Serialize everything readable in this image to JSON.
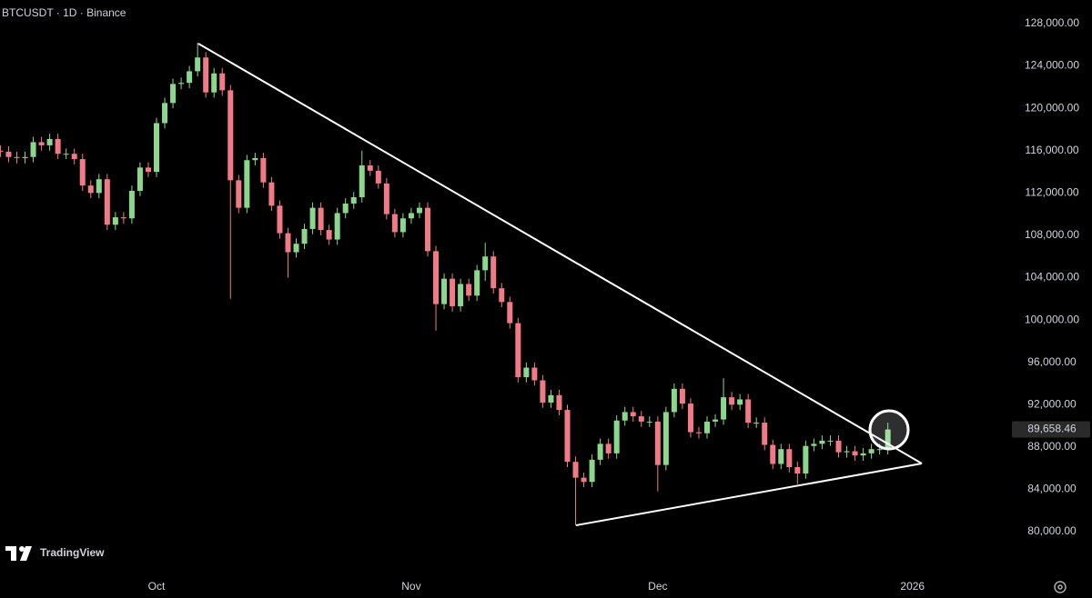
{
  "chart_data": {
    "type": "candlestick",
    "title": "BTCUSDT · 1D · Binance",
    "watermark": "TradingView",
    "categories": [
      null,
      null,
      null,
      null,
      null,
      null,
      null,
      null,
      null,
      null,
      null,
      null,
      null,
      null,
      null,
      null,
      null,
      null,
      null,
      "Oct",
      null,
      null,
      null,
      null,
      null,
      null,
      null,
      null,
      null,
      null,
      null,
      null,
      null,
      null,
      null,
      null,
      null,
      null,
      null,
      null,
      null,
      null,
      null,
      null,
      null,
      null,
      null,
      null,
      null,
      null,
      "Nov",
      null,
      null,
      null,
      null,
      null,
      null,
      null,
      null,
      null,
      null,
      null,
      null,
      null,
      null,
      null,
      null,
      null,
      null,
      null,
      null,
      null,
      null,
      null,
      null,
      null,
      null,
      null,
      null,
      null,
      "Dec",
      null,
      null,
      null,
      null,
      null,
      null,
      null,
      null,
      null,
      null,
      null,
      null,
      null,
      null,
      null,
      null,
      null,
      null,
      null,
      null,
      null,
      null,
      null,
      null,
      null,
      null,
      null,
      null,
      null,
      null,
      "2026",
      null,
      null,
      null,
      null,
      null,
      null,
      null,
      null,
      null,
      null
    ],
    "open": [
      116000,
      115900,
      115400,
      115300,
      115400,
      116800,
      116500,
      117100,
      115700,
      115700,
      115200,
      112700,
      112000,
      113300,
      109000,
      109700,
      109600,
      112200,
      114400,
      114000,
      118600,
      120500,
      122300,
      122400,
      123500,
      124800,
      121500,
      123300,
      121700,
      113200,
      110600,
      115100,
      115300,
      113000,
      110800,
      108200,
      106400,
      107200,
      108600,
      110600,
      108500,
      107600,
      110100,
      111000,
      111600,
      114600,
      114100,
      112900,
      110000,
      108300,
      109600,
      110100,
      110600,
      106500,
      101500,
      103900,
      101300,
      103400,
      102300,
      104700,
      106000,
      103000,
      101700,
      99700,
      94600,
      95500,
      94300,
      92200,
      92900,
      91500,
      86600,
      85100,
      84700,
      86800,
      88300,
      87400,
      90500,
      91300,
      90900,
      90400,
      90400,
      86300,
      91300,
      93500,
      92100,
      89400,
      89300,
      90400,
      90600,
      92700,
      92000,
      92500,
      90300,
      90300,
      88200,
      86400,
      87800,
      86100,
      85500,
      88100,
      88300,
      88600,
      88600,
      87500,
      87600,
      87200,
      87400,
      87800,
      87800,
      null,
      null,
      null,
      null,
      null,
      null,
      null,
      null,
      null,
      null,
      null,
      null,
      null
    ],
    "high": [
      116500,
      116400,
      115900,
      115900,
      117300,
      117300,
      117600,
      117600,
      116200,
      116200,
      115700,
      113200,
      113800,
      113800,
      110200,
      110200,
      112700,
      114900,
      114900,
      119100,
      121000,
      122800,
      122900,
      124000,
      126200,
      125300,
      123800,
      123800,
      122200,
      113700,
      115600,
      115800,
      115800,
      113500,
      111300,
      108700,
      107700,
      109100,
      111100,
      111100,
      109000,
      110600,
      111500,
      112100,
      116000,
      115100,
      114600,
      113400,
      110500,
      110100,
      110600,
      111100,
      111100,
      107000,
      104400,
      104400,
      103900,
      103900,
      105200,
      107300,
      106500,
      103500,
      102200,
      100200,
      96000,
      96000,
      94800,
      93400,
      93400,
      92000,
      87100,
      85600,
      87300,
      88800,
      88800,
      91000,
      91800,
      91800,
      91400,
      90900,
      90900,
      91800,
      94000,
      94000,
      92600,
      89900,
      90900,
      91100,
      94500,
      93200,
      93000,
      93000,
      90800,
      90800,
      88700,
      88300,
      88300,
      86600,
      88600,
      88800,
      89100,
      89100,
      89100,
      88100,
      88100,
      87900,
      88300,
      88300,
      90300,
      null,
      null,
      null,
      null,
      null,
      null,
      null,
      null,
      null,
      null,
      null,
      null,
      null
    ],
    "low": [
      115400,
      114900,
      114800,
      114800,
      114900,
      116000,
      116000,
      115200,
      115200,
      114700,
      112200,
      111500,
      111500,
      108500,
      108500,
      109100,
      109100,
      111700,
      113500,
      113500,
      118100,
      120000,
      121800,
      121900,
      123000,
      121000,
      121000,
      121200,
      102000,
      110100,
      110100,
      114600,
      112500,
      110300,
      107700,
      104000,
      105900,
      106700,
      108100,
      108000,
      107100,
      107100,
      109600,
      110500,
      111100,
      113600,
      112400,
      109500,
      107800,
      107800,
      109100,
      109600,
      106000,
      99000,
      101000,
      100800,
      100800,
      101800,
      101800,
      103700,
      102500,
      101200,
      99200,
      94100,
      94100,
      93800,
      91700,
      91700,
      91000,
      86100,
      80600,
      84200,
      84200,
      86300,
      86900,
      86900,
      90000,
      90400,
      89900,
      89900,
      83800,
      85800,
      90800,
      91600,
      88900,
      88800,
      88800,
      89900,
      90100,
      91500,
      91500,
      89800,
      89800,
      87700,
      85900,
      85900,
      85600,
      84500,
      85000,
      87600,
      87800,
      88100,
      87000,
      87000,
      86700,
      86700,
      86900,
      87300,
      87300,
      null,
      null,
      null,
      null,
      null,
      null,
      null,
      null,
      null,
      null,
      null,
      null,
      null
    ],
    "close": [
      115900,
      115400,
      115300,
      115400,
      116800,
      116500,
      117100,
      115700,
      115700,
      115200,
      112700,
      112000,
      113300,
      109000,
      109700,
      109600,
      112200,
      114400,
      114000,
      118600,
      120500,
      122300,
      122400,
      123500,
      124800,
      121500,
      123300,
      121700,
      113200,
      110600,
      115100,
      115300,
      113000,
      110800,
      108200,
      106400,
      107200,
      108600,
      110600,
      108500,
      107600,
      110100,
      111000,
      111600,
      114600,
      114100,
      112900,
      110000,
      108300,
      109600,
      110100,
      110600,
      106500,
      101500,
      103900,
      101300,
      103400,
      102300,
      104700,
      106000,
      103000,
      101700,
      99700,
      94600,
      95500,
      94300,
      92200,
      92900,
      91500,
      86600,
      85100,
      84700,
      86800,
      88300,
      87400,
      90500,
      91300,
      90900,
      90400,
      90400,
      86300,
      91300,
      93500,
      92100,
      89400,
      89300,
      90400,
      90600,
      92700,
      92000,
      92500,
      90300,
      90300,
      88200,
      86400,
      87800,
      86100,
      85500,
      88100,
      88300,
      88600,
      88600,
      87500,
      87600,
      87200,
      87400,
      87800,
      87800,
      89658.46,
      null,
      null,
      null,
      null,
      null,
      null,
      null,
      null,
      null,
      null,
      null,
      null,
      null
    ],
    "up_color": "#8dd68d",
    "down_color": "#f07b86",
    "ylim": [
      76140,
      130230
    ],
    "yticks": [
      {
        "value": 80000,
        "label": "80,000.00"
      },
      {
        "value": 84000,
        "label": "84,000.00"
      },
      {
        "value": 88000,
        "label": "88,000.00"
      },
      {
        "value": 92000,
        "label": "92,000.00"
      },
      {
        "value": 96000,
        "label": "96,000.00"
      },
      {
        "value": 100000,
        "label": "100,000.00"
      },
      {
        "value": 104000,
        "label": "104,000.00"
      },
      {
        "value": 108000,
        "label": "108,000.00"
      },
      {
        "value": 112000,
        "label": "112,000.00"
      },
      {
        "value": 116000,
        "label": "116,000.00"
      },
      {
        "value": 120000,
        "label": "120,000.00"
      },
      {
        "value": 124000,
        "label": "124,000.00"
      },
      {
        "value": 128000,
        "label": "128,000.00"
      }
    ],
    "last_price": {
      "value": 89658.46,
      "label": "89,658.46"
    },
    "grid": false
  }
}
